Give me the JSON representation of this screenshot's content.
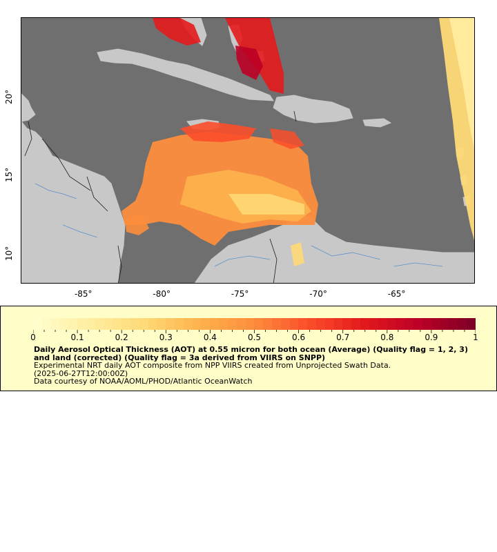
{
  "map": {
    "x_axis_labels": [
      "-85°",
      "-80°",
      "-75°",
      "-70°",
      "-65°"
    ],
    "x_axis_values": [
      -85,
      -80,
      -75,
      -70,
      -65
    ],
    "y_axis_labels": [
      "20°",
      "15°",
      "10°"
    ],
    "y_axis_values": [
      20,
      15,
      10
    ],
    "lon_range": [
      -89,
      -60
    ],
    "lat_range": [
      8,
      25
    ],
    "colors": {
      "ocean": "#6f6f6f",
      "land": "#c8c8c8",
      "rivers": "#5a8fc8",
      "borders": "#1a1a1a"
    }
  },
  "legend": {
    "colorbar_labels": [
      "0",
      "0.1",
      "0.2",
      "0.3",
      "0.4",
      "0.5",
      "0.6",
      "0.7",
      "0.8",
      "0.9",
      "1"
    ],
    "colorbar_range": [
      0,
      1
    ],
    "colorbar_colors": [
      "#fffecc",
      "#ffeda0",
      "#fed976",
      "#feb24c",
      "#fd8d3c",
      "#fc4e2a",
      "#e31a1c",
      "#bd0026",
      "#800026"
    ],
    "title": "Daily Aerosol Optical Thickness (AOT) at 0.55 micron for both ocean (Average) (Quality flag = 1, 2, 3) and land (corrected) (Quality flag = 3a derived from VIIRS on SNPP)",
    "description_line1": "Experimental NRT daily AOT composite from NPP VIIRS created from Unprojected Swath Data.",
    "description_line2": "(2025-06-27T12:00:00Z)",
    "credit": "Data courtesy of NOAA/AOML/PHOD/Atlantic OceanWatch",
    "background": "#fffec8"
  }
}
